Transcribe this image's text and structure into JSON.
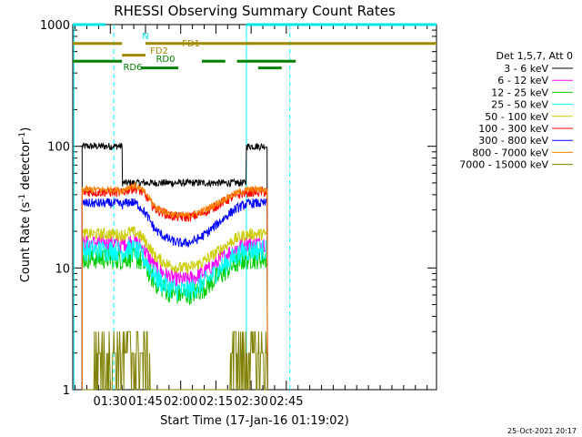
{
  "chart_data": {
    "type": "line",
    "title": "RHESSI Observing Summary Count Rates",
    "xlabel": "Start Time (17-Jan-16 01:19:02)",
    "ylabel_main": "Count Rate (s",
    "ylabel_exp1": "-1",
    "ylabel_mid": " detector",
    "ylabel_exp2": "-1",
    "ylabel_end": ")",
    "y_scale": "log",
    "ylim": [
      1,
      1000
    ],
    "xlim_minutes": [
      -5,
      150
    ],
    "x_ticks": [
      {
        "label": "01:30",
        "t": 11
      },
      {
        "label": "01:45",
        "t": 26
      },
      {
        "label": "02:00",
        "t": 41
      },
      {
        "label": "02:15",
        "t": 56
      },
      {
        "label": "02:30",
        "t": 71
      },
      {
        "label": "02:45",
        "t": 86
      }
    ],
    "y_ticks": [
      {
        "label": "1",
        "v": 1
      },
      {
        "label": "10",
        "v": 10
      },
      {
        "label": "100",
        "v": 100
      },
      {
        "label": "1000",
        "v": 1000
      }
    ],
    "legend_title": "Det 1,5,7, Att 0",
    "legend_placement": "right",
    "series": [
      {
        "name": "3 - 6 keV",
        "color": "#000000",
        "base": 100,
        "dip": 50,
        "noise": 0.03
      },
      {
        "name": "6 - 12 keV",
        "color": "#ff00ff",
        "base": 16,
        "dip": 8,
        "noise": 0.07
      },
      {
        "name": "12 - 25 keV",
        "color": "#00cc00",
        "base": 12,
        "dip": 6,
        "noise": 0.09
      },
      {
        "name": "25 - 50 keV",
        "color": "#00ffff",
        "base": 14,
        "dip": 6.5,
        "noise": 0.09
      },
      {
        "name": "50 - 100 keV",
        "color": "#cccc00",
        "base": 19,
        "dip": 10,
        "noise": 0.05
      },
      {
        "name": "100 - 300 keV",
        "color": "#ff0000",
        "base": 42,
        "dip": 26,
        "noise": 0.04
      },
      {
        "name": "300 - 800 keV",
        "color": "#0000ff",
        "base": 34,
        "dip": 16,
        "noise": 0.04
      },
      {
        "name": "800 - 7000 keV",
        "color": "#ff8000",
        "base": 44,
        "dip": 27,
        "noise": 0.03
      },
      {
        "name": "7000 - 15000 keV",
        "color": "#808000",
        "base": 2,
        "dip": 1,
        "noise": 0.3
      }
    ],
    "data_interval_minutes": [
      -1,
      62
    ],
    "data_interval_minutes_2": [
      62,
      78
    ],
    "annotations": [
      {
        "label": "N",
        "color": "#00e5e5",
        "y": 1000,
        "segments": [
          [
            -5,
            9
          ],
          [
            69,
            150
          ]
        ]
      },
      {
        "label": "FD1",
        "color": "#a08800",
        "y": 700,
        "segments": [
          [
            -5,
            16
          ],
          [
            26,
            70
          ],
          [
            69,
            150
          ]
        ]
      },
      {
        "label": "FD2",
        "color": "#a08800",
        "y": 560,
        "segments": [
          [
            16,
            26
          ]
        ]
      },
      {
        "label": "RD0",
        "color": "#008000",
        "y": 500,
        "segments": [
          [
            -5,
            16
          ],
          [
            50,
            60
          ],
          [
            65,
            90
          ]
        ]
      },
      {
        "label": "RD6",
        "color": "#008000",
        "y": 440,
        "segments": [
          [
            24,
            40
          ],
          [
            74,
            84
          ]
        ]
      }
    ],
    "vlines_solid": [
      -4.5,
      69
    ],
    "vlines_dashed": [
      12.5,
      87.5
    ],
    "footer_date": "25-Oct-2021 20:17"
  },
  "colors": {
    "axis": "#000000",
    "cyan": "#00ffff",
    "background": "#ffffff"
  }
}
